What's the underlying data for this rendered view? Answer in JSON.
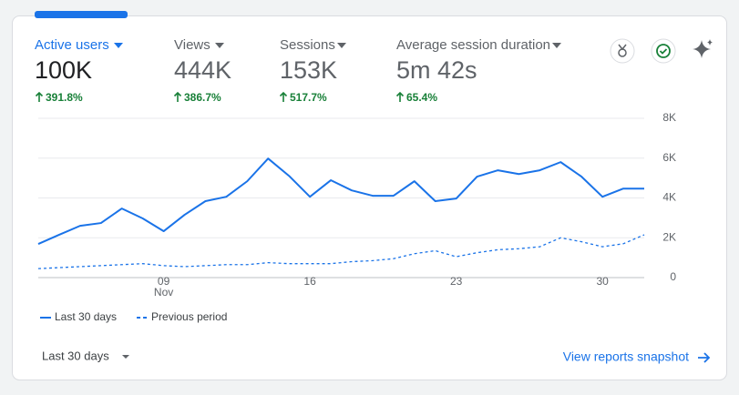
{
  "metrics": [
    {
      "label": "Active users",
      "value": "100K",
      "change": "391.8%"
    },
    {
      "label": "Views",
      "value": "444K",
      "change": "386.7%"
    },
    {
      "label": "Sessions",
      "value": "153K",
      "change": "517.7%"
    },
    {
      "label": "Average session duration",
      "value": "5m 42s",
      "change": "65.4%"
    }
  ],
  "chart_data": {
    "type": "line",
    "categories": [
      null,
      null,
      null,
      null,
      null,
      null,
      "09",
      null,
      null,
      null,
      null,
      null,
      null,
      "16",
      null,
      null,
      null,
      null,
      null,
      null,
      "23",
      null,
      null,
      null,
      null,
      null,
      null,
      "30",
      null,
      null
    ],
    "month_label": "Nov",
    "series": [
      {
        "name": "Last 30 days",
        "color": "#1a73e8",
        "style": "solid",
        "values": [
          1690,
          2150,
          2600,
          2740,
          3470,
          2970,
          2330,
          3150,
          3840,
          4060,
          4840,
          5980,
          5110,
          4060,
          4890,
          4380,
          4110,
          4110,
          4840,
          3840,
          3970,
          5070,
          5390,
          5200,
          5390,
          5800,
          5070,
          4060,
          4470,
          4470
        ]
      },
      {
        "name": "Previous period",
        "color": "#1a73e8",
        "style": "dashed",
        "values": [
          450,
          500,
          550,
          600,
          650,
          700,
          600,
          550,
          600,
          650,
          650,
          750,
          700,
          700,
          700,
          800,
          850,
          950,
          1200,
          1350,
          1050,
          1250,
          1400,
          1450,
          1550,
          2000,
          1800,
          1550,
          1700,
          2150
        ]
      }
    ],
    "ylim": [
      0,
      8000
    ],
    "yticks": [
      0,
      {
        "value": 2000,
        "label": "2K"
      },
      {
        "value": 4000,
        "label": "4K"
      },
      {
        "value": 6000,
        "label": "6K"
      },
      {
        "value": 8000,
        "label": "8K"
      }
    ],
    "grid": true
  },
  "footer": {
    "range": "Last 30 days",
    "link": "View reports snapshot"
  }
}
